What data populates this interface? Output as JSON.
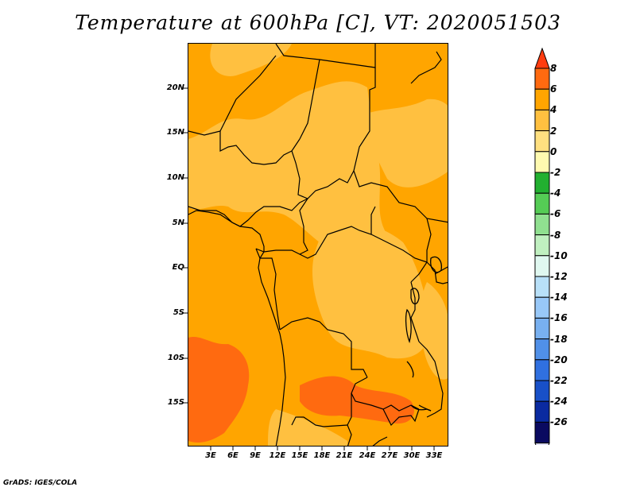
{
  "title": "Temperature at 600hPa [C], VT: 2020051503",
  "credit": "GrADS: IGES/COLA",
  "map": {
    "lat_labels": [
      "20N",
      "15N",
      "10N",
      "5N",
      "EQ",
      "5S",
      "10S",
      "15S"
    ],
    "lon_labels": [
      "3E",
      "6E",
      "9E",
      "12E",
      "15E",
      "18E",
      "21E",
      "24E",
      "27E",
      "30E",
      "33E"
    ],
    "colors": {
      "background_2_to_4": "#ffa500",
      "band_0_to_2": "#ffc040",
      "band_4_to_6": "#ff6a10",
      "border": "#000000"
    }
  },
  "colorbar": {
    "levels": [
      "8",
      "6",
      "4",
      "2",
      "0",
      "-2",
      "-4",
      "-6",
      "-8",
      "-10",
      "-12",
      "-14",
      "-16",
      "-18",
      "-20",
      "-22",
      "-24",
      "-26"
    ],
    "colors": [
      "#ff3c10",
      "#ff6a10",
      "#ffa500",
      "#ffc040",
      "#ffe080",
      "#fffab0",
      "#22b030",
      "#55cc55",
      "#90e090",
      "#c0f0c0",
      "#e0f8f0",
      "#b8e0f8",
      "#98c8f8",
      "#78b0f0",
      "#5090e8",
      "#3070e0",
      "#1850c8",
      "#0a2aa0",
      "#0a0a60",
      "#e0e0f8"
    ]
  }
}
